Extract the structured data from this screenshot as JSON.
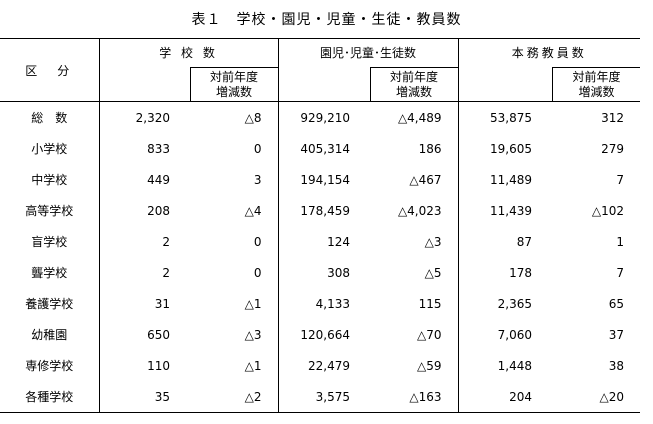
{
  "title": "表１　学校・園児・児童・生徒・教員数",
  "headers": {
    "category": "区　分",
    "schools": "学 校 数",
    "students": "園児･児童･生徒数",
    "teachers": "本務教員数",
    "change_line1": "対前年度",
    "change_line2": "増減数"
  },
  "rows": [
    {
      "name": "総　数",
      "schools": "2,320",
      "schools_change": "△8",
      "students": "929,210",
      "students_change": "△4,489",
      "teachers": "53,875",
      "teachers_change": "312"
    },
    {
      "name": "小学校",
      "schools": "833",
      "schools_change": "0",
      "students": "405,314",
      "students_change": "186",
      "teachers": "19,605",
      "teachers_change": "279"
    },
    {
      "name": "中学校",
      "schools": "449",
      "schools_change": "3",
      "students": "194,154",
      "students_change": "△467",
      "teachers": "11,489",
      "teachers_change": "7"
    },
    {
      "name": "高等学校",
      "schools": "208",
      "schools_change": "△4",
      "students": "178,459",
      "students_change": "△4,023",
      "teachers": "11,439",
      "teachers_change": "△102"
    },
    {
      "name": "盲学校",
      "schools": "2",
      "schools_change": "0",
      "students": "124",
      "students_change": "△3",
      "teachers": "87",
      "teachers_change": "1"
    },
    {
      "name": "聾学校",
      "schools": "2",
      "schools_change": "0",
      "students": "308",
      "students_change": "△5",
      "teachers": "178",
      "teachers_change": "7"
    },
    {
      "name": "養護学校",
      "schools": "31",
      "schools_change": "△1",
      "students": "4,133",
      "students_change": "115",
      "teachers": "2,365",
      "teachers_change": "65"
    },
    {
      "name": "幼稚園",
      "schools": "650",
      "schools_change": "△3",
      "students": "120,664",
      "students_change": "△70",
      "teachers": "7,060",
      "teachers_change": "37"
    },
    {
      "name": "専修学校",
      "schools": "110",
      "schools_change": "△1",
      "students": "22,479",
      "students_change": "△59",
      "teachers": "1,448",
      "teachers_change": "38"
    },
    {
      "name": "各種学校",
      "schools": "35",
      "schools_change": "△2",
      "students": "3,575",
      "students_change": "△163",
      "teachers": "204",
      "teachers_change": "△20"
    }
  ]
}
